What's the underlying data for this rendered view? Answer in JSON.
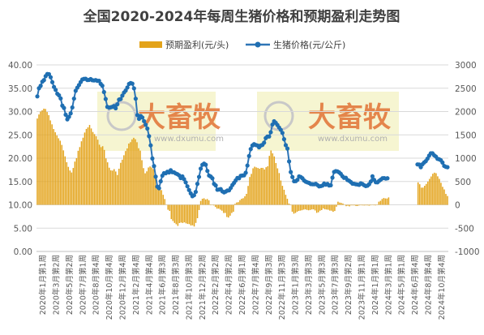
{
  "title": "全国2020-2024年每周生猪价格和预期盈利走势图",
  "watermark": {
    "brand": "大畜牧",
    "url": "www.dxumu.com"
  },
  "colors": {
    "bars": "#e3a31a",
    "line": "#2e75b6",
    "marker": "#1f6fb2",
    "watermark_bg": "#f3f1c2",
    "watermark_text": "#e06a2a"
  },
  "chart_data": {
    "type": "bar+line",
    "title": "全国2020-2024年每周生猪价格和预期盈利走势图",
    "legend_position": "top-center",
    "grid": true,
    "y_left": {
      "ticks": [
        "0.00",
        "5.00",
        "10.00",
        "15.00",
        "20.00",
        "25.00",
        "30.00",
        "35.00",
        "40.00"
      ],
      "range": [
        0,
        40
      ]
    },
    "y_right": {
      "ticks": [
        "-1000",
        "-500",
        "0",
        "500",
        "1000",
        "1500",
        "2000",
        "2500",
        "3000"
      ],
      "range": [
        -1000,
        3000
      ]
    },
    "x_tick_labels": [
      "2020年1月第1周",
      "2020年3月第2周",
      "2020年5月第2周",
      "2020年7月第1周",
      "2020年8月第4周",
      "2020年10月第4周",
      "2020年12月第4周",
      "2021年2月第4周",
      "2021年4月第4周",
      "2021年6月第3周",
      "2021年8月第3周",
      "2021年10月第3周",
      "2021年12月第2周",
      "2022年2月第2周",
      "2022年4月第2周",
      "2022年6月第1周",
      "2022年7月第4周",
      "2022年9月第3周",
      "2022年11月第3周",
      "2023年1月第3周",
      "2023年3月第3周",
      "2023年5月第3周",
      "2023年7月第3周",
      "2023年9月第2周",
      "2023年11月第1周",
      "2024年1月第1周",
      "2024年3月第1周",
      "2024年5月第1周",
      "2024年6月第4周",
      "2024年8月第4周",
      "2024年10月第4周"
    ],
    "series": [
      {
        "name": "预期盈利(元/头)",
        "type": "bar",
        "axis": "right",
        "values": [
          1850,
          1937,
          2000,
          2025,
          2062,
          2056,
          1990,
          1922,
          1810,
          1725,
          1625,
          1556,
          1487,
          1427,
          1375,
          1285,
          1168,
          1039,
          913,
          814,
          735,
          693,
          790,
          927,
          1000,
          1159,
          1238,
          1362,
          1439,
          1550,
          1627,
          1660,
          1712,
          1637,
          1562,
          1516,
          1472,
          1397,
          1289,
          1237,
          1257,
          1177,
          995,
          911,
          796,
          739,
          734,
          765,
          714,
          640,
          774,
          901,
          968,
          1063,
          1154,
          1209,
          1313,
          1343,
          1403,
          1437,
          1407,
          1342,
          1213,
          1162,
          957,
          787,
          676,
          718,
          800,
          823,
          801,
          765,
          679,
          541,
          411,
          367,
          315,
          215,
          124,
          -3,
          -106,
          -131,
          -306,
          -347,
          -388,
          -416,
          -452,
          -391,
          -380,
          -390,
          -376,
          -397,
          -410,
          -414,
          -444,
          -439,
          -465,
          -388,
          -287,
          -112,
          83,
          130,
          140,
          115,
          125,
          96,
          -9,
          -7,
          -13,
          -47,
          -83,
          -82,
          -104,
          -126,
          -175,
          -175,
          -261,
          -273,
          -233,
          -175,
          -150,
          21,
          50,
          57,
          101,
          130,
          142,
          182,
          235,
          405,
          597,
          663,
          783,
          817,
          802,
          790,
          774,
          792,
          792,
          759,
          806,
          826,
          1049,
          1165,
          1103,
          1037,
          896,
          782,
          681,
          521,
          407,
          323,
          215,
          129,
          28,
          -8,
          -148,
          -190,
          -175,
          -148,
          -131,
          -124,
          -116,
          -103,
          -98,
          -109,
          -117,
          -110,
          -99,
          -98,
          -121,
          -172,
          -160,
          -126,
          -112,
          -78,
          -97,
          -101,
          -106,
          -124,
          -126,
          -150,
          -132,
          -40,
          67,
          48,
          40,
          27,
          -5,
          -29,
          -20,
          -33,
          -12,
          -12,
          -12,
          -25,
          -25,
          -13,
          -10,
          -12,
          -14,
          -12,
          -12,
          -18,
          -11,
          -6,
          -10,
          -12,
          -7,
          67,
          86,
          125,
          146,
          137,
          135,
          159,
          null,
          null,
          null,
          null,
          null,
          null,
          null,
          null,
          null,
          null,
          null,
          null,
          null,
          null,
          null,
          null,
          null,
          481,
          441,
          368,
          369,
          408,
          448,
          499,
          556,
          608,
          666,
          689,
          677,
          611,
          556,
          472,
          386,
          330,
          234,
          189
        ]
      },
      {
        "name": "生猪价格(元/公斤)",
        "type": "line",
        "axis": "left",
        "values": [
          33.25,
          35.0,
          35.52,
          36.4,
          36.74,
          37.58,
          38.04,
          38.01,
          37.36,
          36.3,
          35.27,
          34.64,
          33.81,
          33.48,
          32.81,
          31.26,
          30.76,
          29.32,
          28.33,
          28.87,
          29.61,
          30.88,
          32.77,
          34.46,
          35.12,
          35.68,
          36.31,
          36.87,
          37.0,
          37.03,
          36.75,
          36.78,
          36.97,
          36.72,
          36.66,
          36.74,
          36.59,
          36.59,
          35.93,
          35.52,
          34.17,
          32.69,
          31.0,
          30.84,
          30.91,
          31.0,
          31.18,
          30.69,
          31.55,
          32.56,
          32.68,
          33.41,
          34.08,
          34.5,
          35.15,
          35.91,
          36.11,
          35.98,
          34.97,
          32.75,
          29.24,
          28.43,
          29.04,
          28.73,
          27.94,
          27.17,
          26.35,
          24.72,
          22.75,
          19.93,
          18.3,
          16.04,
          13.89,
          13.56,
          15.04,
          16.25,
          16.79,
          16.75,
          17.1,
          16.92,
          17.42,
          17.0,
          16.97,
          16.73,
          16.58,
          16.33,
          15.73,
          16.1,
          15.51,
          14.81,
          13.97,
          13.17,
          12.45,
          11.85,
          12.05,
          12.77,
          14.5,
          15.99,
          17.76,
          18.58,
          18.84,
          18.59,
          17.27,
          16.27,
          16.07,
          15.69,
          14.49,
          14.15,
          13.23,
          13.28,
          13.38,
          12.88,
          12.66,
          12.85,
          13.07,
          13.1,
          13.62,
          14.24,
          14.72,
          15.24,
          15.76,
          15.69,
          16.23,
          16.28,
          16.33,
          16.87,
          18.42,
          20.47,
          21.96,
          22.72,
          23.01,
          22.82,
          22.73,
          22.32,
          22.72,
          22.85,
          23.32,
          24.3,
          24.64,
          24.65,
          25.56,
          27.21,
          27.91,
          27.58,
          27.11,
          26.57,
          26.08,
          25.42,
          24.07,
          22.78,
          22.07,
          19.3,
          17.02,
          15.96,
          15.05,
          15.08,
          15.36,
          16.09,
          15.97,
          15.7,
          15.22,
          14.96,
          14.81,
          14.7,
          14.46,
          14.42,
          14.4,
          14.5,
          14.25,
          13.96,
          14.01,
          14.12,
          14.56,
          14.33,
          14.49,
          14.15,
          14.2,
          15.83,
          17.05,
          17.22,
          17.16,
          16.96,
          16.64,
          16.13,
          15.77,
          15.81,
          15.32,
          15.16,
          14.89,
          14.54,
          14.51,
          14.41,
          14.36,
          14.27,
          14.62,
          14.46,
          14.21,
          14.02,
          14.11,
          14.41,
          14.99,
          16.12,
          15.36,
          14.84,
          14.82,
          15.14,
          15.4,
          15.69,
          15.73,
          15.62,
          15.69,
          null,
          null,
          null,
          null,
          null,
          null,
          null,
          null,
          null,
          null,
          null,
          null,
          null,
          null,
          null,
          null,
          null,
          18.66,
          18.63,
          18.06,
          18.7,
          19.09,
          19.37,
          19.9,
          20.54,
          21.05,
          21.04,
          20.62,
          20.36,
          19.87,
          19.76,
          19.58,
          19.07,
          18.34,
          18.14,
          18.07
        ]
      }
    ]
  }
}
